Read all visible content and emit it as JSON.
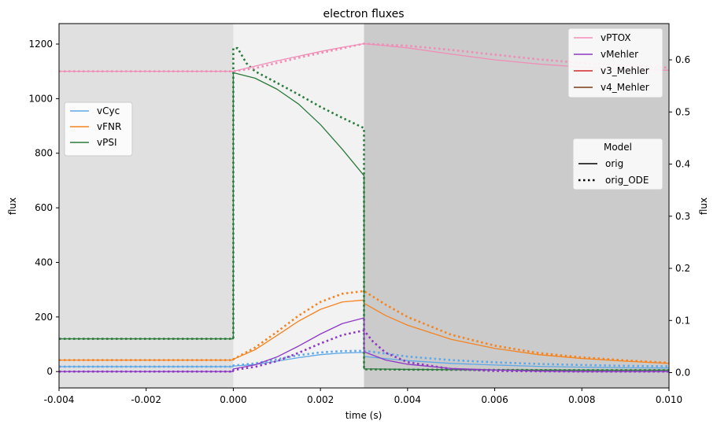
{
  "chart_data": {
    "type": "line",
    "title": "electron fluxes",
    "xlabel": "time (s)",
    "ylabel_left": "flux",
    "ylabel_right": "flux",
    "xlim": [
      -0.004,
      0.01
    ],
    "ylim_left": [
      -60,
      1275
    ],
    "ylim_right": [
      -0.0294,
      0.6695
    ],
    "x_ticks": [
      "-0.004",
      "-0.002",
      "0.000",
      "0.002",
      "0.004",
      "0.006",
      "0.008",
      "0.010"
    ],
    "x_tick_values": [
      -0.004,
      -0.002,
      0.0,
      0.002,
      0.004,
      0.006,
      0.008,
      0.01
    ],
    "y_left_ticks": [
      "0",
      "200",
      "400",
      "600",
      "800",
      "1000",
      "1200"
    ],
    "y_left_tick_values": [
      0,
      200,
      400,
      600,
      800,
      1000,
      1200
    ],
    "y_right_ticks": [
      "0.0",
      "0.1",
      "0.2",
      "0.3",
      "0.4",
      "0.5",
      "0.6"
    ],
    "y_right_tick_values": [
      0.0,
      0.1,
      0.2,
      0.3,
      0.4,
      0.5,
      0.6
    ],
    "background_regions": [
      {
        "x": [
          -0.004,
          0.0
        ],
        "color": "#e0e0e0"
      },
      {
        "x": [
          0.0,
          0.003
        ],
        "color": "#f2f2f2"
      },
      {
        "x": [
          0.003,
          0.01
        ],
        "color": "#cbcbcb"
      }
    ],
    "colors": {
      "vCyc": "#5fa8e6",
      "vFNR": "#f5831f",
      "vPSI": "#2a7a3b",
      "vPTOX": "#f08db6",
      "vMehler": "#8e38c4",
      "v3_Mehler": "#d62728",
      "v4_Mehler": "#7a3b12"
    },
    "series": [
      {
        "name": "vCyc",
        "model": "orig",
        "axis": "left",
        "points": [
          [
            -0.004,
            18
          ],
          [
            0.0,
            18
          ],
          [
            0.0,
            20
          ],
          [
            0.0005,
            26
          ],
          [
            0.001,
            38
          ],
          [
            0.0015,
            51
          ],
          [
            0.002,
            62
          ],
          [
            0.0025,
            68
          ],
          [
            0.003,
            70
          ],
          [
            0.003,
            55
          ],
          [
            0.004,
            40
          ],
          [
            0.005,
            30
          ],
          [
            0.006,
            24
          ],
          [
            0.007,
            19
          ],
          [
            0.008,
            16
          ],
          [
            0.009,
            14
          ],
          [
            0.01,
            13
          ]
        ]
      },
      {
        "name": "vCyc",
        "model": "orig_ODE",
        "axis": "left",
        "points": [
          [
            -0.004,
            18
          ],
          [
            0.0,
            18
          ],
          [
            0.0,
            22
          ],
          [
            0.0005,
            30
          ],
          [
            0.001,
            45
          ],
          [
            0.0015,
            60
          ],
          [
            0.002,
            70
          ],
          [
            0.0025,
            75
          ],
          [
            0.003,
            76
          ],
          [
            0.0035,
            66
          ],
          [
            0.004,
            55
          ],
          [
            0.005,
            42
          ],
          [
            0.006,
            34
          ],
          [
            0.007,
            28
          ],
          [
            0.008,
            24
          ],
          [
            0.009,
            21
          ],
          [
            0.01,
            19
          ]
        ]
      },
      {
        "name": "vFNR",
        "model": "orig",
        "axis": "left",
        "points": [
          [
            -0.004,
            42
          ],
          [
            0.0,
            42
          ],
          [
            0.0,
            45
          ],
          [
            0.0005,
            80
          ],
          [
            0.001,
            132
          ],
          [
            0.0015,
            185
          ],
          [
            0.002,
            228
          ],
          [
            0.0025,
            255
          ],
          [
            0.003,
            262
          ],
          [
            0.003,
            250
          ],
          [
            0.0035,
            205
          ],
          [
            0.004,
            170
          ],
          [
            0.005,
            118
          ],
          [
            0.006,
            85
          ],
          [
            0.007,
            62
          ],
          [
            0.008,
            48
          ],
          [
            0.009,
            38
          ],
          [
            0.01,
            30
          ]
        ]
      },
      {
        "name": "vFNR",
        "model": "orig_ODE",
        "axis": "left",
        "points": [
          [
            -0.004,
            42
          ],
          [
            0.0,
            42
          ],
          [
            0.0,
            45
          ],
          [
            0.0005,
            88
          ],
          [
            0.001,
            145
          ],
          [
            0.0015,
            205
          ],
          [
            0.002,
            255
          ],
          [
            0.0025,
            285
          ],
          [
            0.003,
            295
          ],
          [
            0.0035,
            245
          ],
          [
            0.004,
            200
          ],
          [
            0.005,
            135
          ],
          [
            0.006,
            95
          ],
          [
            0.007,
            68
          ],
          [
            0.008,
            52
          ],
          [
            0.009,
            41
          ],
          [
            0.01,
            32
          ]
        ]
      },
      {
        "name": "vPSI",
        "model": "orig",
        "axis": "left",
        "points": [
          [
            -0.004,
            120
          ],
          [
            0.0,
            120
          ],
          [
            0.0,
            1095
          ],
          [
            0.0005,
            1075
          ],
          [
            0.001,
            1035
          ],
          [
            0.0015,
            980
          ],
          [
            0.002,
            905
          ],
          [
            0.0025,
            815
          ],
          [
            0.003,
            718
          ],
          [
            0.003,
            10
          ],
          [
            0.004,
            8
          ],
          [
            0.006,
            6
          ],
          [
            0.008,
            5
          ],
          [
            0.01,
            5
          ]
        ]
      },
      {
        "name": "vPSI",
        "model": "orig_ODE",
        "axis": "left",
        "points": [
          [
            -0.004,
            120
          ],
          [
            0.0,
            120
          ],
          [
            0.0,
            1185
          ],
          [
            0.0001,
            1185
          ],
          [
            0.0003,
            1130
          ],
          [
            0.0005,
            1100
          ],
          [
            0.001,
            1058
          ],
          [
            0.0015,
            1015
          ],
          [
            0.002,
            970
          ],
          [
            0.0025,
            930
          ],
          [
            0.003,
            892
          ],
          [
            0.003,
            8
          ],
          [
            0.004,
            7
          ],
          [
            0.006,
            6
          ],
          [
            0.008,
            5
          ],
          [
            0.01,
            5
          ]
        ]
      },
      {
        "name": "vMehler",
        "model": "orig",
        "axis": "right",
        "points": [
          [
            -0.004,
            0.002
          ],
          [
            0.0,
            0.002
          ],
          [
            0.0,
            0.007
          ],
          [
            0.0005,
            0.015
          ],
          [
            0.001,
            0.03
          ],
          [
            0.0015,
            0.051
          ],
          [
            0.002,
            0.074
          ],
          [
            0.0025,
            0.094
          ],
          [
            0.003,
            0.105
          ],
          [
            0.003,
            0.04
          ],
          [
            0.0035,
            0.024
          ],
          [
            0.004,
            0.016
          ],
          [
            0.005,
            0.008
          ],
          [
            0.006,
            0.005
          ],
          [
            0.007,
            0.003
          ],
          [
            0.008,
            0.002
          ],
          [
            0.01,
            0.002
          ]
        ]
      },
      {
        "name": "vMehler",
        "model": "orig_ODE",
        "axis": "right",
        "points": [
          [
            -0.004,
            0.002
          ],
          [
            0.0,
            0.002
          ],
          [
            0.0,
            0.005
          ],
          [
            0.0005,
            0.011
          ],
          [
            0.001,
            0.022
          ],
          [
            0.0015,
            0.038
          ],
          [
            0.002,
            0.056
          ],
          [
            0.0025,
            0.072
          ],
          [
            0.003,
            0.081
          ],
          [
            0.0032,
            0.06
          ],
          [
            0.0035,
            0.038
          ],
          [
            0.004,
            0.02
          ],
          [
            0.005,
            0.007
          ],
          [
            0.006,
            0.003
          ],
          [
            0.008,
            0.002
          ],
          [
            0.01,
            0.002
          ]
        ]
      },
      {
        "name": "vPTOX",
        "model": "orig",
        "axis": "right",
        "points": [
          [
            -0.004,
            0.578
          ],
          [
            0.0,
            0.578
          ],
          [
            0.0005,
            0.588
          ],
          [
            0.001,
            0.598
          ],
          [
            0.0015,
            0.607
          ],
          [
            0.002,
            0.616
          ],
          [
            0.0025,
            0.624
          ],
          [
            0.003,
            0.631
          ],
          [
            0.004,
            0.623
          ],
          [
            0.005,
            0.611
          ],
          [
            0.006,
            0.6
          ],
          [
            0.007,
            0.592
          ],
          [
            0.008,
            0.586
          ],
          [
            0.009,
            0.582
          ],
          [
            0.01,
            0.58
          ]
        ]
      },
      {
        "name": "vPTOX",
        "model": "orig_ODE",
        "axis": "right",
        "points": [
          [
            -0.004,
            0.578
          ],
          [
            0.0,
            0.578
          ],
          [
            0.0005,
            0.584
          ],
          [
            0.001,
            0.594
          ],
          [
            0.0015,
            0.604
          ],
          [
            0.002,
            0.613
          ],
          [
            0.0025,
            0.622
          ],
          [
            0.003,
            0.631
          ],
          [
            0.004,
            0.627
          ],
          [
            0.005,
            0.619
          ],
          [
            0.006,
            0.61
          ],
          [
            0.007,
            0.601
          ],
          [
            0.008,
            0.594
          ],
          [
            0.009,
            0.589
          ],
          [
            0.01,
            0.585
          ]
        ]
      }
    ],
    "legends": {
      "left": {
        "placement": "center-left",
        "entries": [
          "vCyc",
          "vFNR",
          "vPSI"
        ]
      },
      "right_top": {
        "placement": "top-right",
        "entries": [
          "vPTOX",
          "vMehler",
          "v3_Mehler",
          "v4_Mehler"
        ]
      },
      "model": {
        "placement": "center-right",
        "title": "Model",
        "entries": [
          "orig",
          "orig_ODE"
        ]
      }
    },
    "grid": false
  }
}
